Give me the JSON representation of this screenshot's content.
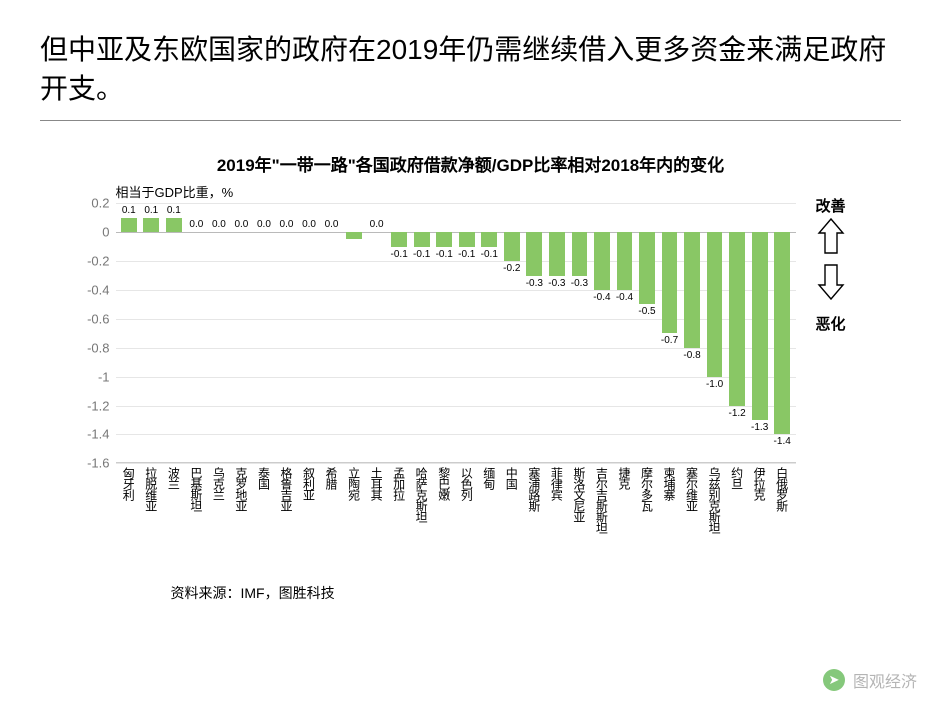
{
  "slide": {
    "title": "但中亚及东欧国家的政府在2019年仍需继续借入更多资金来满足政府开支。"
  },
  "chart": {
    "type": "bar",
    "title": "2019年\"一带一路\"各国政府借款净额/GDP比率相对2018年内的变化",
    "y_axis_label": "相当于GDP比重，%",
    "ylim": [
      -1.6,
      0.2
    ],
    "ytick_step": 0.2,
    "yticks": [
      "0.2",
      "0",
      "-0.2",
      "-0.4",
      "-0.6",
      "-0.8",
      "-1",
      "-1.2",
      "-1.4",
      "-1.6"
    ],
    "bar_color": "#89c765",
    "grid_color": "#e6e6e6",
    "axis_text_color": "#777777",
    "background_color": "#ffffff",
    "categories": [
      "匈牙利",
      "拉脱维亚",
      "波兰",
      "巴基斯坦",
      "乌克兰",
      "克罗地亚",
      "泰国",
      "格鲁吉亚",
      "叙利亚",
      "希腊",
      "立陶宛",
      "土耳其",
      "孟加拉",
      "哈萨克斯坦",
      "黎巴嫩",
      "以色列",
      "缅甸",
      "中国",
      "塞浦路斯",
      "菲律宾",
      "斯洛文尼亚",
      "吉尔吉斯斯坦",
      "捷克",
      "摩尔多瓦",
      "柬埔寨",
      "塞尔维亚",
      "乌兹别克斯坦",
      "约旦",
      "伊拉克",
      "白俄罗斯"
    ],
    "values": [
      0.1,
      0.1,
      0.1,
      0.0,
      0.0,
      0.0,
      0.0,
      0.0,
      0.0,
      0.0,
      -0.05,
      0.0,
      -0.1,
      -0.1,
      -0.1,
      -0.1,
      -0.1,
      -0.2,
      -0.3,
      -0.3,
      -0.3,
      -0.4,
      -0.4,
      -0.5,
      -0.7,
      -0.8,
      -1.0,
      -1.2,
      -1.3,
      -1.4
    ],
    "value_labels": [
      "0.1",
      "0.1",
      "0.1",
      "0.0",
      "0.0",
      "0.0",
      "0.0",
      "0.0",
      "0.0",
      "0.0",
      "",
      "0.0",
      "-0.1",
      "-0.1",
      "-0.1",
      "-0.1",
      "-0.1",
      "-0.2",
      "-0.3",
      "-0.3",
      "-0.3",
      "-0.4",
      "-0.4",
      "-0.5",
      "-0.7",
      "-0.8",
      "-1.0",
      "-1.2",
      "-1.3",
      "-1.4"
    ],
    "last_value_label": "-1.4",
    "annotations": {
      "improve": "改善",
      "worsen": "恶化"
    },
    "source": "资料来源：IMF，图胜科技"
  },
  "watermark": {
    "icon_glyph": "➤",
    "text": "图观经济"
  }
}
